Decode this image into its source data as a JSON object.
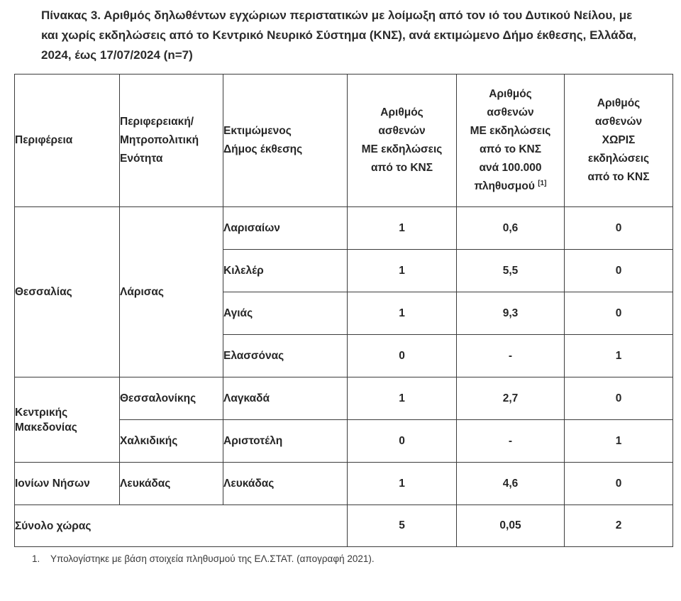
{
  "title": {
    "lines": [
      "Πίνακας 3. Αριθμός δηλωθέντων εγχώριων περιστατικών με λοίμωξη από τον ιό του Δυτικού Νείλου, με",
      "και χωρίς εκδηλώσεις από το Κεντρικό Νευρικό Σύστημα (ΚΝΣ), ανά εκτιμώμενο Δήμο έκθεσης, Ελλάδα,",
      "2024, έως 17/07/2024 (n=7)"
    ]
  },
  "table": {
    "columns": [
      {
        "lines": [
          "Περιφέρεια"
        ],
        "align": "left"
      },
      {
        "lines": [
          "Περιφερειακή/",
          "Μητροπολιτική",
          "Ενότητα"
        ],
        "align": "left"
      },
      {
        "lines": [
          "Εκτιμώμενος",
          "Δήμος έκθεσης"
        ],
        "align": "left"
      },
      {
        "lines": [
          "Αριθμός",
          "ασθενών",
          "ΜΕ εκδηλώσεις",
          "από το ΚΝΣ"
        ],
        "align": "center"
      },
      {
        "lines": [
          "Αριθμός",
          "ασθενών",
          "ΜΕ εκδηλώσεις",
          "από το ΚΝΣ",
          "ανά 100.000",
          "πληθυσμού"
        ],
        "superscript": "[1]",
        "align": "center"
      },
      {
        "lines": [
          "Αριθμός",
          "ασθενών",
          "ΧΩΡΙΣ",
          "εκδηλώσεις",
          "από το ΚΝΣ"
        ],
        "align": "center"
      }
    ],
    "rows": [
      {
        "cells": [
          {
            "text": "Θεσσαλίας",
            "kind": "region",
            "rowspan": 4,
            "align": "left"
          },
          {
            "text": "Λάρισας",
            "kind": "unit",
            "rowspan": 4,
            "align": "left"
          },
          {
            "text": "Λαρισαίων",
            "kind": "municipality",
            "align": "left"
          },
          {
            "text": "1",
            "kind": "value"
          },
          {
            "text": "0,6",
            "kind": "value"
          },
          {
            "text": "0",
            "kind": "value"
          }
        ]
      },
      {
        "cells": [
          {
            "text": "Κιλελέρ",
            "kind": "municipality",
            "align": "left"
          },
          {
            "text": "1",
            "kind": "value"
          },
          {
            "text": "5,5",
            "kind": "value"
          },
          {
            "text": "0",
            "kind": "value"
          }
        ]
      },
      {
        "cells": [
          {
            "text": "Αγιάς",
            "kind": "municipality",
            "align": "left"
          },
          {
            "text": "1",
            "kind": "value"
          },
          {
            "text": "9,3",
            "kind": "value"
          },
          {
            "text": "0",
            "kind": "value"
          }
        ]
      },
      {
        "cells": [
          {
            "text": "Ελασσόνας",
            "kind": "municipality",
            "align": "left"
          },
          {
            "text": "0",
            "kind": "value"
          },
          {
            "text": "-",
            "kind": "value"
          },
          {
            "text": "1",
            "kind": "value"
          }
        ]
      },
      {
        "cells": [
          {
            "text": "Κεντρικής Μακεδονίας",
            "kind": "region",
            "rowspan": 2,
            "align": "left"
          },
          {
            "text": "Θεσσαλονίκης",
            "kind": "unit",
            "align": "left"
          },
          {
            "text": "Λαγκαδά",
            "kind": "municipality",
            "align": "left"
          },
          {
            "text": "1",
            "kind": "value"
          },
          {
            "text": "2,7",
            "kind": "value"
          },
          {
            "text": "0",
            "kind": "value"
          }
        ]
      },
      {
        "cells": [
          {
            "text": "Χαλκιδικής",
            "kind": "unit",
            "align": "left"
          },
          {
            "text": "Αριστοτέλη",
            "kind": "municipality",
            "align": "left"
          },
          {
            "text": "0",
            "kind": "value"
          },
          {
            "text": "-",
            "kind": "value"
          },
          {
            "text": "1",
            "kind": "value"
          }
        ]
      },
      {
        "cells": [
          {
            "text": "Ιονίων Νήσων",
            "kind": "region",
            "align": "left"
          },
          {
            "text": "Λευκάδας",
            "kind": "unit",
            "align": "left"
          },
          {
            "text": "Λευκάδας",
            "kind": "municipality",
            "align": "left"
          },
          {
            "text": "1",
            "kind": "value"
          },
          {
            "text": "4,6",
            "kind": "value"
          },
          {
            "text": "0",
            "kind": "value"
          }
        ]
      },
      {
        "total": true,
        "cells": [
          {
            "text": "Σύνολο χώρας",
            "kind": "total-label",
            "colspan": 3,
            "align": "left"
          },
          {
            "text": "5",
            "kind": "value"
          },
          {
            "text": "0,05",
            "kind": "value"
          },
          {
            "text": "2",
            "kind": "value"
          }
        ]
      }
    ]
  },
  "footnote": {
    "marker": "1.",
    "text": "Υπολογίστηκε με βάση στοιχεία πληθυσμού της  ΕΛ.ΣΤΑΤ. (απογραφή 2021)."
  },
  "colors": {
    "text": "#262626",
    "border": "#3c3c3c",
    "background": "#ffffff"
  }
}
